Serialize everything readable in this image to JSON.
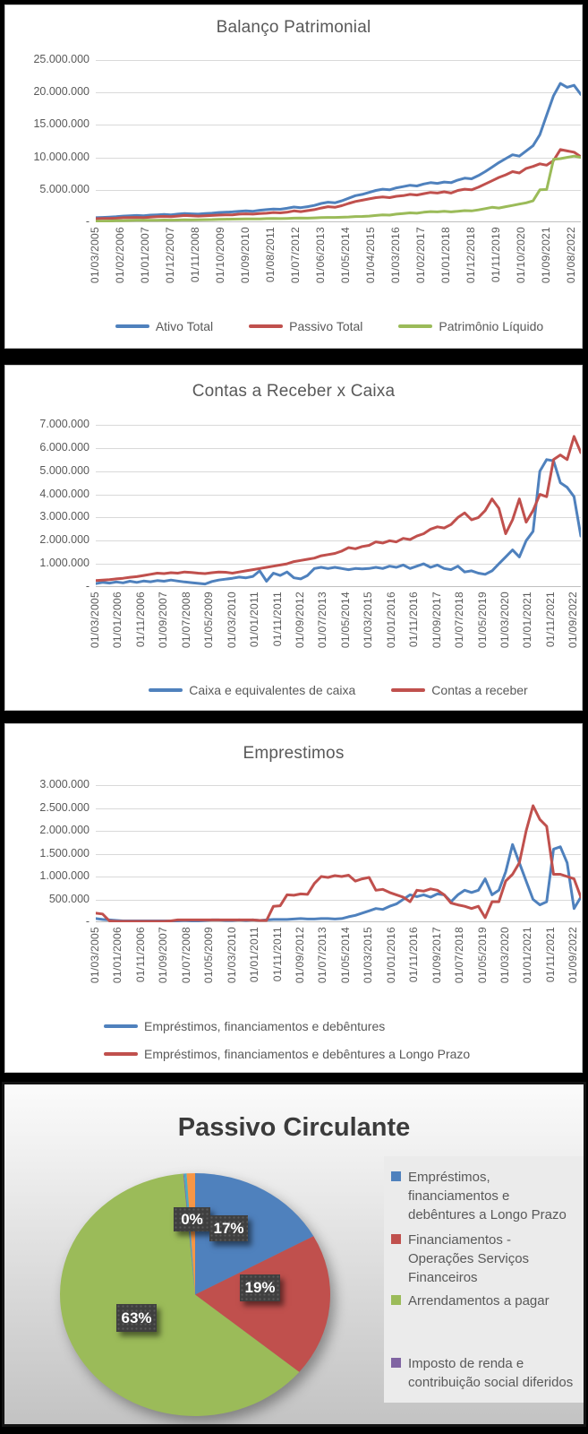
{
  "values_unit": "thousands (axis labels show full values, e.g. 5.000.000)",
  "chart_data": [
    {
      "type": "line",
      "title": "Balanço Patrimonial",
      "ymax": 25000,
      "grid": true,
      "legend_position": "bottom",
      "y_tick_labels": [
        "25.000.000",
        "20.000.000",
        "15.000.000",
        "10.000.000",
        "5.000.000",
        "-"
      ],
      "x_tick_labels": [
        "01/03/2005",
        "01/02/2006",
        "01/01/2007",
        "01/12/2007",
        "01/11/2008",
        "01/10/2009",
        "01/09/2010",
        "01/08/2011",
        "01/07/2012",
        "01/06/2013",
        "01/05/2014",
        "01/04/2015",
        "01/03/2016",
        "01/02/2017",
        "01/01/2018",
        "01/12/2018",
        "01/11/2019",
        "01/10/2020",
        "01/09/2021",
        "01/08/2022"
      ],
      "label_step_months": 11,
      "total_months": 213,
      "series": [
        {
          "name": "Ativo Total",
          "color": "#4F81BD",
          "values": [
            700,
            750,
            800,
            850,
            950,
            1000,
            1050,
            1000,
            1100,
            1150,
            1200,
            1150,
            1250,
            1350,
            1300,
            1250,
            1350,
            1400,
            1500,
            1550,
            1600,
            1700,
            1750,
            1700,
            1850,
            1950,
            2050,
            2000,
            2150,
            2350,
            2250,
            2400,
            2600,
            2900,
            3100,
            3000,
            3300,
            3700,
            4100,
            4300,
            4600,
            4900,
            5100,
            5000,
            5300,
            5500,
            5700,
            5600,
            5900,
            6100,
            6000,
            6200,
            6100,
            6500,
            6800,
            6700,
            7200,
            7800,
            8500,
            9200,
            9800,
            10400,
            10200,
            11000,
            11800,
            13500,
            16500,
            19500,
            21400,
            20800,
            21100,
            19700
          ]
        },
        {
          "name": "Passivo Total",
          "color": "#C0504D",
          "values": [
            550,
            580,
            600,
            620,
            700,
            720,
            750,
            700,
            800,
            850,
            900,
            850,
            950,
            1050,
            1000,
            950,
            1000,
            1050,
            1100,
            1150,
            1150,
            1250,
            1300,
            1250,
            1350,
            1400,
            1500,
            1450,
            1550,
            1750,
            1650,
            1800,
            1950,
            2200,
            2400,
            2300,
            2550,
            2900,
            3200,
            3400,
            3600,
            3800,
            3900,
            3800,
            4000,
            4100,
            4300,
            4200,
            4400,
            4600,
            4500,
            4700,
            4500,
            4900,
            5100,
            5000,
            5400,
            5900,
            6400,
            6900,
            7300,
            7800,
            7600,
            8300,
            8600,
            9000,
            8800,
            9500,
            11200,
            11000,
            10800,
            10100
          ]
        },
        {
          "name": "Patrimônio Líquido",
          "color": "#9BBB59",
          "values": [
            150,
            170,
            200,
            230,
            250,
            280,
            300,
            320,
            300,
            320,
            340,
            330,
            350,
            370,
            360,
            380,
            400,
            420,
            450,
            470,
            480,
            500,
            520,
            510,
            530,
            560,
            580,
            570,
            600,
            630,
            650,
            640,
            680,
            720,
            750,
            740,
            780,
            820,
            880,
            900,
            950,
            1050,
            1150,
            1100,
            1250,
            1350,
            1450,
            1400,
            1550,
            1650,
            1600,
            1700,
            1600,
            1700,
            1800,
            1750,
            1900,
            2100,
            2300,
            2200,
            2400,
            2600,
            2800,
            3000,
            3300,
            5000,
            5050,
            9700,
            9800,
            10000,
            10200,
            10000
          ]
        }
      ]
    },
    {
      "type": "line",
      "title": "Contas a Receber x Caixa",
      "ymax": 7000,
      "grid": true,
      "legend_position": "bottom",
      "y_tick_labels": [
        "7.000.000",
        "6.000.000",
        "5.000.000",
        "4.000.000",
        "3.000.000",
        "2.000.000",
        "1.000.000",
        "-"
      ],
      "x_tick_labels": [
        "01/03/2005",
        "01/01/2006",
        "01/11/2006",
        "01/09/2007",
        "01/07/2008",
        "01/05/2009",
        "01/03/2010",
        "01/01/2011",
        "01/11/2011",
        "01/09/2012",
        "01/07/2013",
        "01/05/2014",
        "01/03/2015",
        "01/01/2016",
        "01/11/2016",
        "01/09/2017",
        "01/07/2018",
        "01/05/2019",
        "01/03/2020",
        "01/01/2021",
        "01/11/2021",
        "01/09/2022"
      ],
      "label_step_months": 10,
      "total_months": 213,
      "series": [
        {
          "name": "Caixa e equivalentes de caixa",
          "color": "#4F81BD",
          "values": [
            150,
            200,
            170,
            220,
            180,
            250,
            200,
            260,
            230,
            280,
            250,
            300,
            260,
            220,
            190,
            160,
            130,
            240,
            300,
            340,
            380,
            430,
            400,
            460,
            700,
            250,
            600,
            500,
            650,
            400,
            350,
            500,
            800,
            850,
            800,
            850,
            800,
            750,
            800,
            780,
            800,
            850,
            800,
            900,
            850,
            950,
            800,
            900,
            1000,
            850,
            950,
            800,
            750,
            900,
            650,
            700,
            600,
            550,
            700,
            1000,
            1300,
            1600,
            1300,
            2000,
            2400,
            5000,
            5500,
            5450,
            4500,
            4300,
            3900,
            2200
          ]
        },
        {
          "name": "Contas a receber",
          "color": "#C0504D",
          "values": [
            280,
            300,
            320,
            350,
            380,
            420,
            450,
            500,
            550,
            600,
            580,
            620,
            600,
            650,
            630,
            600,
            580,
            620,
            650,
            640,
            600,
            650,
            700,
            750,
            800,
            850,
            900,
            950,
            1000,
            1100,
            1150,
            1200,
            1250,
            1350,
            1400,
            1450,
            1550,
            1700,
            1650,
            1750,
            1800,
            1950,
            1900,
            2000,
            1950,
            2100,
            2050,
            2200,
            2300,
            2500,
            2600,
            2550,
            2700,
            3000,
            3200,
            2900,
            3000,
            3300,
            3800,
            3400,
            2300,
            2900,
            3800,
            2800,
            3300,
            4000,
            3900,
            5500,
            5700,
            5500,
            6500,
            5800
          ]
        }
      ]
    },
    {
      "type": "line",
      "title": "Emprestimos",
      "ymax": 3000,
      "grid": true,
      "legend_position": "bottom-left-stacked",
      "y_tick_labels": [
        "3.000.000",
        "2.500.000",
        "2.000.000",
        "1.500.000",
        "1.000.000",
        "500.000",
        "-"
      ],
      "x_tick_labels": [
        "01/03/2005",
        "01/01/2006",
        "01/11/2006",
        "01/09/2007",
        "01/07/2008",
        "01/05/2009",
        "01/03/2010",
        "01/01/2011",
        "01/11/2011",
        "01/09/2012",
        "01/07/2013",
        "01/05/2014",
        "01/03/2015",
        "01/01/2016",
        "01/11/2016",
        "01/09/2017",
        "01/07/2018",
        "01/05/2019",
        "01/03/2020",
        "01/01/2021",
        "01/11/2021",
        "01/09/2022"
      ],
      "label_step_months": 10,
      "total_months": 213,
      "series": [
        {
          "name": "Empréstimos, financiamentos e debêntures",
          "color": "#4F81BD",
          "values": [
            80,
            60,
            50,
            40,
            30,
            30,
            30,
            30,
            30,
            30,
            30,
            30,
            30,
            40,
            30,
            30,
            40,
            50,
            50,
            40,
            40,
            50,
            40,
            50,
            40,
            50,
            60,
            60,
            60,
            70,
            80,
            70,
            70,
            80,
            80,
            70,
            80,
            120,
            150,
            200,
            250,
            300,
            280,
            350,
            400,
            500,
            600,
            560,
            600,
            550,
            620,
            600,
            450,
            600,
            700,
            650,
            700,
            950,
            600,
            700,
            1100,
            1700,
            1300,
            900,
            500,
            380,
            450,
            1600,
            1650,
            1300,
            300,
            550
          ]
        },
        {
          "name": "Empréstimos, financiamentos e debêntures a Longo Prazo",
          "color": "#C0504D",
          "values": [
            200,
            180,
            30,
            20,
            20,
            20,
            20,
            20,
            20,
            20,
            20,
            30,
            50,
            50,
            50,
            50,
            50,
            50,
            50,
            50,
            50,
            50,
            50,
            50,
            40,
            40,
            350,
            360,
            600,
            590,
            620,
            610,
            850,
            1000,
            980,
            1020,
            1000,
            1030,
            900,
            950,
            980,
            700,
            720,
            650,
            600,
            550,
            450,
            700,
            680,
            730,
            700,
            600,
            420,
            380,
            350,
            300,
            350,
            100,
            450,
            450,
            900,
            1050,
            1300,
            2000,
            2550,
            2250,
            2100,
            1050,
            1050,
            1000,
            950,
            550
          ]
        }
      ]
    },
    {
      "type": "pie",
      "title": "Passivo Circulante",
      "legend_position": "right",
      "slices": [
        {
          "label": "Empréstimos, financiamentos e debêntures a Longo Prazo",
          "pct": 17,
          "color": "#4F81BD"
        },
        {
          "label": "Financiamentos - Operações Serviços Financeiros",
          "pct": 19,
          "color": "#C0504D"
        },
        {
          "label": "Arrendamentos a pagar",
          "pct": 62.6,
          "color": "#9BBB59"
        },
        {
          "label": "Imposto de renda e contribuição social diferidos",
          "pct": 0.1,
          "color": "#8064A2"
        },
        {
          "label": "",
          "pct": 0.3,
          "color": "#4BACC6"
        },
        {
          "label": "",
          "pct": 1.0,
          "color": "#F79646"
        }
      ],
      "data_labels": [
        "0%",
        "17%",
        "19%",
        "63%"
      ]
    }
  ]
}
